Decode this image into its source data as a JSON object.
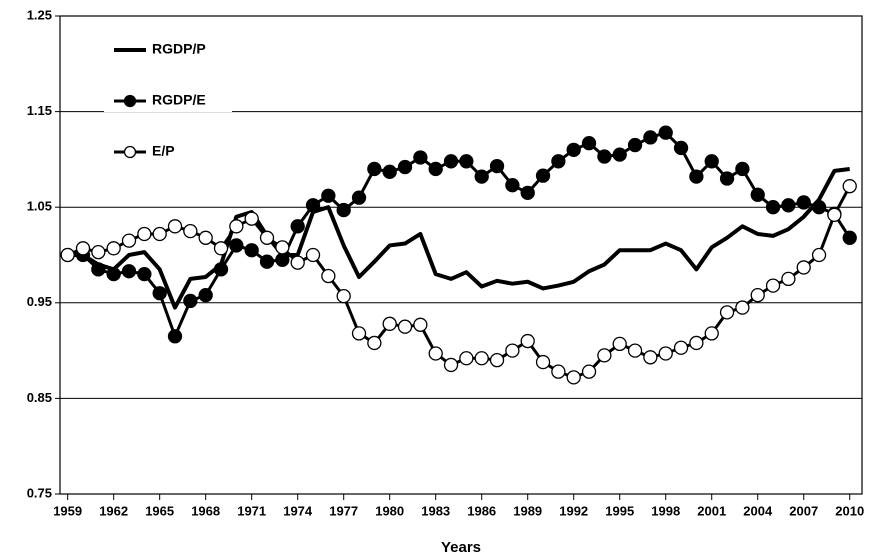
{
  "chart_data": {
    "type": "line",
    "xlabel": "Years",
    "x": [
      1959,
      1960,
      1961,
      1962,
      1963,
      1964,
      1965,
      1966,
      1967,
      1968,
      1969,
      1970,
      1971,
      1972,
      1973,
      1974,
      1975,
      1976,
      1977,
      1978,
      1979,
      1980,
      1981,
      1982,
      1983,
      1984,
      1985,
      1986,
      1987,
      1988,
      1989,
      1990,
      1991,
      1992,
      1993,
      1994,
      1995,
      1996,
      1997,
      1998,
      1999,
      2000,
      2001,
      2002,
      2003,
      2004,
      2005,
      2006,
      2007,
      2008,
      2009,
      2010
    ],
    "series": [
      {
        "name": "RGDP/P",
        "color": "#000000",
        "marker": "none",
        "values": [
          1.0,
          1.0,
          0.99,
          0.985,
          1.0,
          1.003,
          0.985,
          0.945,
          0.975,
          0.977,
          0.99,
          1.04,
          1.045,
          1.02,
          1.0,
          1.0,
          1.045,
          1.05,
          1.01,
          0.977,
          0.993,
          1.01,
          1.012,
          1.022,
          0.98,
          0.975,
          0.982,
          0.967,
          0.973,
          0.97,
          0.972,
          0.965,
          0.968,
          0.972,
          0.983,
          0.99,
          1.005,
          1.005,
          1.005,
          1.012,
          1.005,
          0.985,
          1.008,
          1.018,
          1.03,
          1.022,
          1.02,
          1.027,
          1.04,
          1.058,
          1.088,
          1.09
        ]
      },
      {
        "name": "RGDP/E",
        "color": "#000000",
        "marker": "filled",
        "values": [
          1.0,
          1.0,
          0.985,
          0.98,
          0.983,
          0.98,
          0.96,
          0.915,
          0.952,
          0.958,
          0.985,
          1.01,
          1.005,
          0.993,
          0.995,
          1.03,
          1.052,
          1.062,
          1.047,
          1.06,
          1.09,
          1.087,
          1.092,
          1.102,
          1.09,
          1.098,
          1.098,
          1.082,
          1.093,
          1.073,
          1.065,
          1.083,
          1.098,
          1.11,
          1.117,
          1.103,
          1.105,
          1.115,
          1.123,
          1.128,
          1.112,
          1.082,
          1.098,
          1.08,
          1.09,
          1.063,
          1.05,
          1.052,
          1.055,
          1.05,
          1.043,
          1.018
        ]
      },
      {
        "name": "E/P",
        "color": "#000000",
        "marker": "open",
        "values": [
          1.0,
          1.007,
          1.003,
          1.007,
          1.015,
          1.022,
          1.022,
          1.03,
          1.025,
          1.018,
          1.007,
          1.03,
          1.038,
          1.018,
          1.008,
          0.992,
          1.0,
          0.978,
          0.957,
          0.918,
          0.908,
          0.928,
          0.925,
          0.927,
          0.897,
          0.885,
          0.892,
          0.892,
          0.89,
          0.9,
          0.91,
          0.888,
          0.878,
          0.872,
          0.878,
          0.895,
          0.907,
          0.9,
          0.893,
          0.897,
          0.903,
          0.908,
          0.918,
          0.94,
          0.945,
          0.958,
          0.968,
          0.975,
          0.987,
          1.0,
          1.042,
          1.072
        ]
      }
    ],
    "xlim": [
      1958.5,
      2010.8
    ],
    "xticks": [
      1959,
      1962,
      1965,
      1968,
      1971,
      1974,
      1977,
      1980,
      1983,
      1986,
      1989,
      1992,
      1995,
      1998,
      2001,
      2004,
      2007,
      2010
    ],
    "ylim": [
      0.75,
      1.25
    ],
    "yticks": [
      0.75,
      0.85,
      0.95,
      1.05,
      1.15,
      1.25
    ],
    "grid": true,
    "legend": "upper left"
  }
}
